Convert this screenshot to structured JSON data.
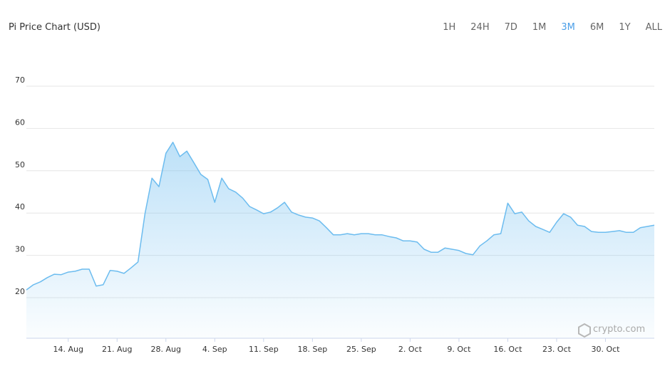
{
  "chart_data": {
    "type": "line",
    "title": "Pi Price Chart (USD)",
    "categories": [
      "8. Aug",
      "9. Aug",
      "10. Aug",
      "11. Aug",
      "12. Aug",
      "13. Aug",
      "14. Aug",
      "15. Aug",
      "16. Aug",
      "17. Aug",
      "18. Aug",
      "19. Aug",
      "20. Aug",
      "21. Aug",
      "22. Aug",
      "23. Aug",
      "24. Aug",
      "25. Aug",
      "26. Aug",
      "27. Aug",
      "28. Aug",
      "29. Aug",
      "30. Aug",
      "31. Aug",
      "1. Sep",
      "2. Sep",
      "3. Sep",
      "4. Sep",
      "5. Sep",
      "6. Sep",
      "7. Sep",
      "8. Sep",
      "9. Sep",
      "10. Sep",
      "11. Sep",
      "12. Sep",
      "13. Sep",
      "14. Sep",
      "15. Sep",
      "16. Sep",
      "17. Sep",
      "18. Sep",
      "19. Sep",
      "20. Sep",
      "21. Sep",
      "22. Sep",
      "23. Sep",
      "24. Sep",
      "25. Sep",
      "26. Sep",
      "27. Sep",
      "28. Sep",
      "29. Sep",
      "30. Sep",
      "1. Oct",
      "2. Oct",
      "3. Oct",
      "4. Oct",
      "5. Oct",
      "6. Oct",
      "7. Oct",
      "8. Oct",
      "9. Oct",
      "10. Oct",
      "11. Oct",
      "12. Oct",
      "13. Oct",
      "14. Oct",
      "15. Oct",
      "16. Oct",
      "17. Oct",
      "18. Oct",
      "19. Oct",
      "20. Oct",
      "21. Oct",
      "22. Oct",
      "23. Oct",
      "24. Oct",
      "25. Oct",
      "26. Oct",
      "27. Oct",
      "28. Oct",
      "29. Oct",
      "30. Oct",
      "31. Oct",
      "1. Nov",
      "2. Nov",
      "3. Nov",
      "4. Nov",
      "5. Nov",
      "6. Nov"
    ],
    "series": [
      {
        "name": "Pi",
        "color": "#6cbcef",
        "values": [
          21,
          22.2,
          22.9,
          23.9,
          24.7,
          24.6,
          25.2,
          25.4,
          25.9,
          25.9,
          21.9,
          22.2,
          25.6,
          25.4,
          24.9,
          26.2,
          27.6,
          39,
          47.4,
          45.4,
          53.3,
          55.9,
          52.5,
          53.8,
          51.1,
          48.3,
          47.1,
          41.7,
          47.4,
          44.9,
          44.1,
          42.7,
          40.7,
          39.9,
          39,
          39.4,
          40.4,
          41.7,
          39.4,
          38.7,
          38.2,
          38,
          37.3,
          35.7,
          34,
          34,
          34.3,
          34,
          34.3,
          34.3,
          34,
          34,
          33.6,
          33.3,
          32.6,
          32.6,
          32.3,
          30.6,
          29.9,
          29.9,
          30.9,
          30.6,
          30.3,
          29.6,
          29.3,
          31.4,
          32.6,
          34,
          34.3,
          41.5,
          39,
          39.4,
          37.3,
          36,
          35.3,
          34.6,
          37,
          39,
          38.2,
          36.3,
          36,
          34.8,
          34.6,
          34.6,
          34.8,
          35,
          34.6,
          34.6,
          35.7,
          36,
          36.3
        ]
      }
    ],
    "xticks": [
      "14. Aug",
      "21. Aug",
      "28. Aug",
      "4. Sep",
      "11. Sep",
      "18. Sep",
      "25. Sep",
      "2. Oct",
      "9. Oct",
      "16. Oct",
      "23. Oct",
      "30. Oct"
    ],
    "ylim": [
      10,
      75
    ],
    "yticks": [
      20,
      30,
      40,
      50,
      60,
      70
    ],
    "grid": true
  },
  "range_buttons": [
    "1H",
    "24H",
    "7D",
    "1M",
    "3M",
    "6M",
    "1Y",
    "ALL"
  ],
  "active_range": "3M",
  "watermark": "crypto.com"
}
